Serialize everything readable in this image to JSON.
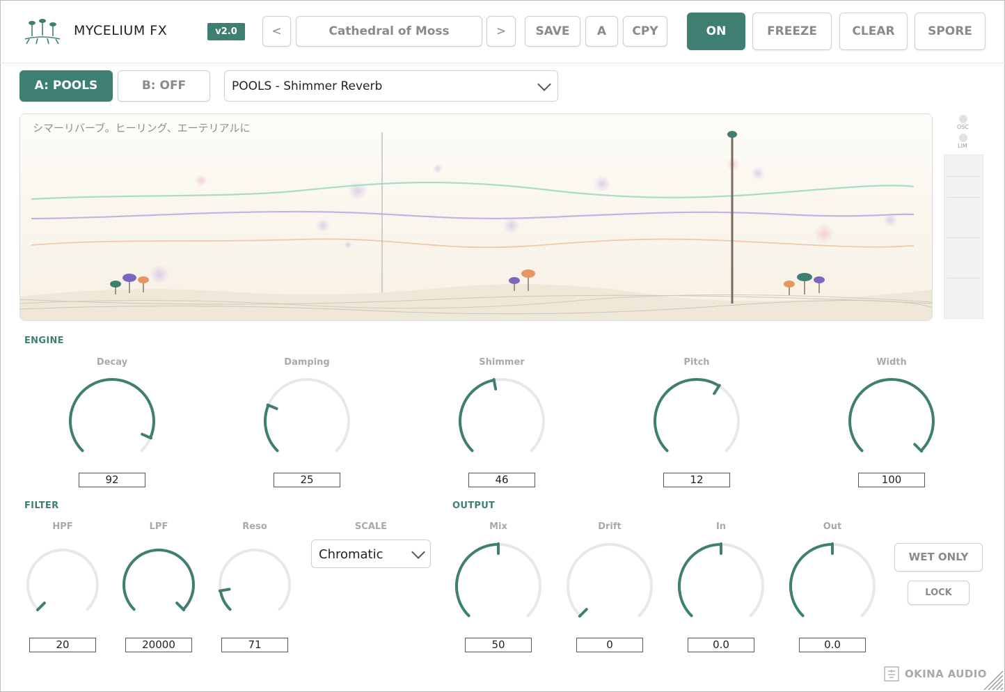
{
  "header": {
    "app_title": "MYCELIUM FX",
    "version": "v2.0",
    "prev_label": "<",
    "next_label": ">",
    "preset_name": "Cathedral of Moss",
    "save_label": "SAVE",
    "a_label": "A",
    "copy_label": "CPY",
    "on_label": "ON",
    "freeze_label": "FREEZE",
    "clear_label": "CLEAR",
    "spore_label": "SPORE"
  },
  "slots": {
    "a_label": "A: POOLS",
    "b_label": "B: OFF",
    "algorithm": "POOLS - Shimmer Reverb"
  },
  "viz": {
    "description": "シマーリバーブ。ヒーリング、エーテリアルに",
    "osc_label": "OSC",
    "lim_label": "LIM"
  },
  "engine": {
    "title": "ENGINE",
    "knobs": [
      {
        "label": "Decay",
        "value": "92",
        "fraction": 0.92
      },
      {
        "label": "Damping",
        "value": "25",
        "fraction": 0.25
      },
      {
        "label": "Shimmer",
        "value": "46",
        "fraction": 0.46
      },
      {
        "label": "Pitch",
        "value": "12",
        "fraction": 0.62
      },
      {
        "label": "Width",
        "value": "100",
        "fraction": 1.0
      }
    ]
  },
  "filter": {
    "title": "FILTER",
    "knobs": [
      {
        "label": "HPF",
        "value": "20",
        "fraction": 0.0
      },
      {
        "label": "LPF",
        "value": "20000",
        "fraction": 1.0
      },
      {
        "label": "Reso",
        "value": "71",
        "fraction": 0.13
      }
    ],
    "scale_label": "SCALE",
    "scale_value": "Chromatic"
  },
  "output": {
    "title": "OUTPUT",
    "knobs": [
      {
        "label": "Mix",
        "value": "50",
        "fraction": 0.5
      },
      {
        "label": "Drift",
        "value": "0",
        "fraction": 0.0
      },
      {
        "label": "In",
        "value": "0.0",
        "fraction": 0.5
      },
      {
        "label": "Out",
        "value": "0.0",
        "fraction": 0.5
      }
    ],
    "wet_only_label": "WET ONLY",
    "lock_label": "LOCK"
  },
  "footer": {
    "brand": "OKINA AUDIO"
  },
  "colors": {
    "accent": "#3f7f72",
    "track": "#e8e8e8"
  }
}
